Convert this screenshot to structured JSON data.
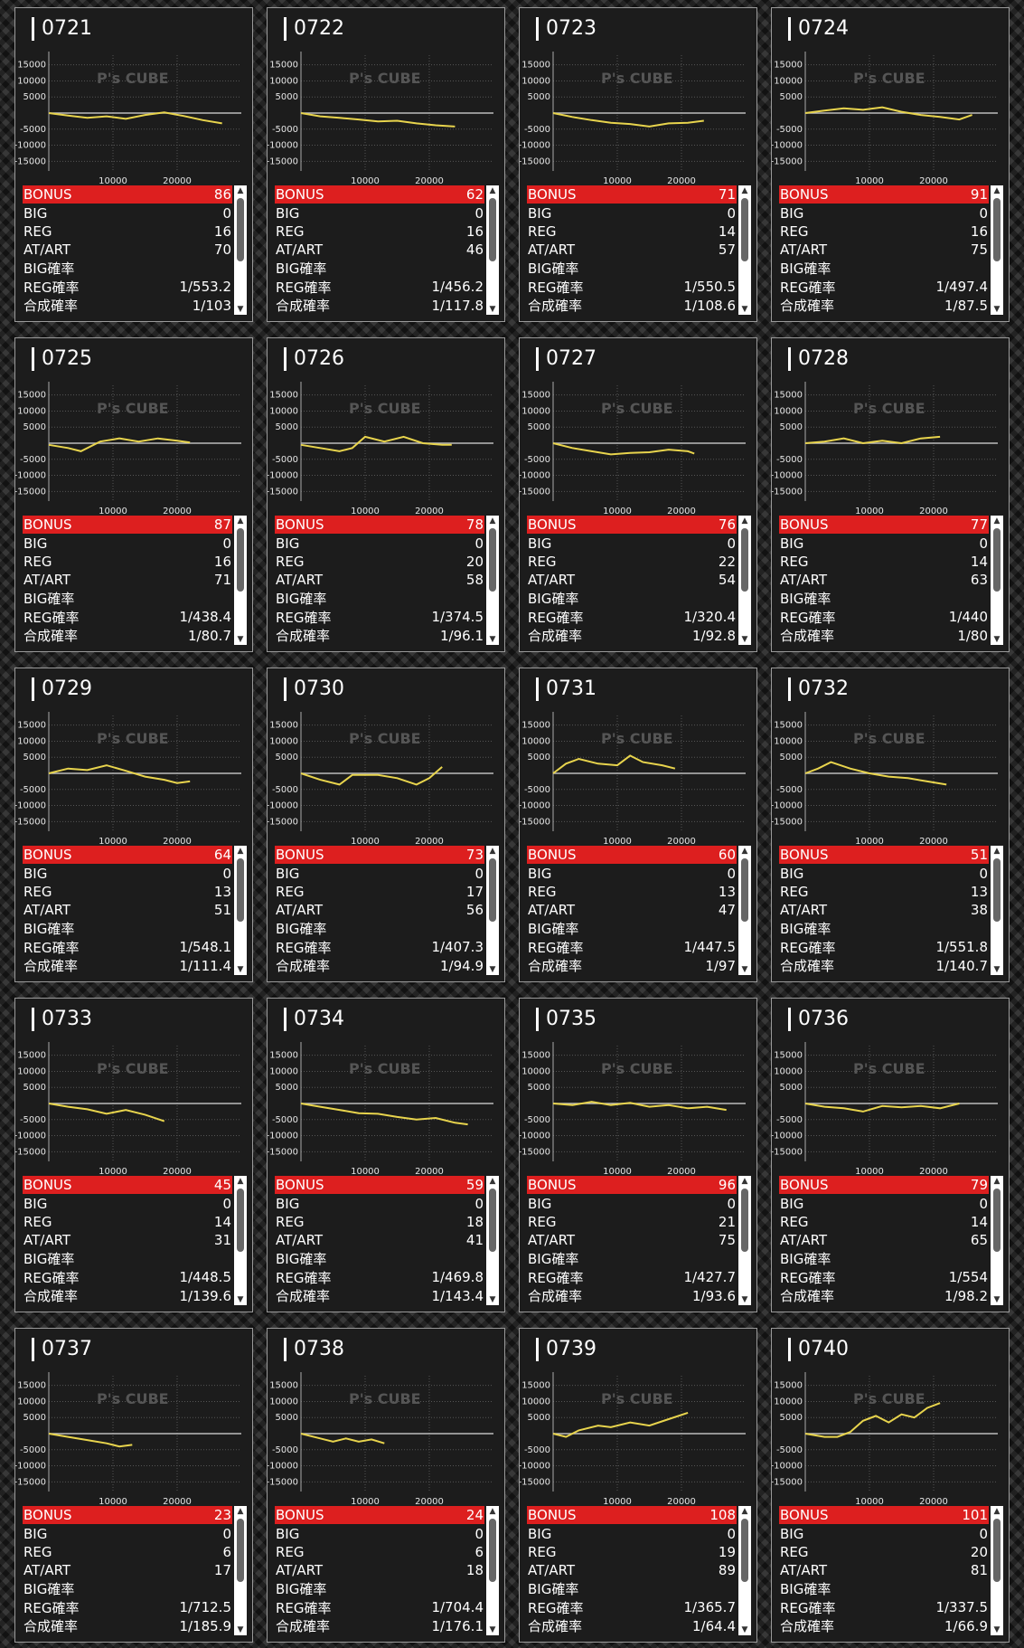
{
  "row_labels": {
    "bonus": "BONUS",
    "big": "BIG",
    "reg": "REG",
    "at": "AT/ART",
    "big_rate": "BIG確率",
    "reg_rate": "REG確率",
    "total_rate": "合成確率"
  },
  "watermark": "P's CUBE",
  "colors": {
    "line": "#e8d44d",
    "bonus_bg": "#dd1f1f",
    "card_bg": "#1c1c1c"
  },
  "chart_data": [
    {
      "type": "line",
      "title": "0721",
      "ylim": [
        -18000,
        18000
      ],
      "xlim": [
        0,
        30000
      ],
      "y_ticks": [
        15000,
        10000,
        5000,
        -5000,
        -10000,
        -15000
      ],
      "x_ticks": [
        10000,
        20000
      ],
      "x": [
        0,
        3000,
        6000,
        9000,
        12000,
        15000,
        18000,
        21000,
        24000,
        27000
      ],
      "y": [
        0,
        -800,
        -1500,
        -1000,
        -1800,
        -600,
        200,
        -900,
        -2200,
        -3200
      ],
      "stats": {
        "bonus": "86",
        "big": "0",
        "reg": "16",
        "at": "70",
        "big_rate": "",
        "reg_rate": "1/553.2",
        "total_rate": "1/103"
      }
    },
    {
      "type": "line",
      "title": "0722",
      "ylim": [
        -18000,
        18000
      ],
      "xlim": [
        0,
        30000
      ],
      "y_ticks": [
        15000,
        10000,
        5000,
        -5000,
        -10000,
        -15000
      ],
      "x_ticks": [
        10000,
        20000
      ],
      "x": [
        0,
        3000,
        6000,
        9000,
        12000,
        15000,
        18000,
        21000,
        24000
      ],
      "y": [
        0,
        -1000,
        -1500,
        -2000,
        -2600,
        -2400,
        -3200,
        -3800,
        -4200
      ],
      "stats": {
        "bonus": "62",
        "big": "0",
        "reg": "16",
        "at": "46",
        "big_rate": "",
        "reg_rate": "1/456.2",
        "total_rate": "1/117.8"
      }
    },
    {
      "type": "line",
      "title": "0723",
      "ylim": [
        -18000,
        18000
      ],
      "xlim": [
        0,
        30000
      ],
      "y_ticks": [
        15000,
        10000,
        5000,
        -5000,
        -10000,
        -15000
      ],
      "x_ticks": [
        10000,
        20000
      ],
      "x": [
        0,
        3000,
        6000,
        9000,
        12000,
        15000,
        18000,
        21000,
        23500
      ],
      "y": [
        0,
        -1200,
        -2200,
        -3000,
        -3400,
        -4200,
        -3200,
        -3000,
        -2400
      ],
      "stats": {
        "bonus": "71",
        "big": "0",
        "reg": "14",
        "at": "57",
        "big_rate": "",
        "reg_rate": "1/550.5",
        "total_rate": "1/108.6"
      }
    },
    {
      "type": "line",
      "title": "0724",
      "ylim": [
        -18000,
        18000
      ],
      "xlim": [
        0,
        30000
      ],
      "y_ticks": [
        15000,
        10000,
        5000,
        -5000,
        -10000,
        -15000
      ],
      "x_ticks": [
        10000,
        20000
      ],
      "x": [
        0,
        3000,
        6000,
        9000,
        12000,
        15000,
        18000,
        21000,
        24000,
        26000
      ],
      "y": [
        0,
        800,
        1500,
        1000,
        1800,
        400,
        -600,
        -1200,
        -2000,
        -600
      ],
      "stats": {
        "bonus": "91",
        "big": "0",
        "reg": "16",
        "at": "75",
        "big_rate": "",
        "reg_rate": "1/497.4",
        "total_rate": "1/87.5"
      }
    },
    {
      "type": "line",
      "title": "0725",
      "ylim": [
        -18000,
        18000
      ],
      "xlim": [
        0,
        30000
      ],
      "y_ticks": [
        15000,
        10000,
        5000,
        -5000,
        -10000,
        -15000
      ],
      "x_ticks": [
        10000,
        20000
      ],
      "x": [
        0,
        3000,
        5000,
        8000,
        11000,
        14000,
        17000,
        20000,
        22000
      ],
      "y": [
        -500,
        -1500,
        -2500,
        500,
        1500,
        500,
        1500,
        800,
        200
      ],
      "stats": {
        "bonus": "87",
        "big": "0",
        "reg": "16",
        "at": "71",
        "big_rate": "",
        "reg_rate": "1/438.4",
        "total_rate": "1/80.7"
      }
    },
    {
      "type": "line",
      "title": "0726",
      "ylim": [
        -18000,
        18000
      ],
      "xlim": [
        0,
        30000
      ],
      "y_ticks": [
        15000,
        10000,
        5000,
        -5000,
        -10000,
        -15000
      ],
      "x_ticks": [
        10000,
        20000
      ],
      "x": [
        0,
        3000,
        6000,
        8000,
        10000,
        13000,
        16000,
        19000,
        22000,
        23500
      ],
      "y": [
        -500,
        -1500,
        -2500,
        -1500,
        2000,
        500,
        2000,
        0,
        -500,
        -500
      ],
      "stats": {
        "bonus": "78",
        "big": "0",
        "reg": "20",
        "at": "58",
        "big_rate": "",
        "reg_rate": "1/374.5",
        "total_rate": "1/96.1"
      }
    },
    {
      "type": "line",
      "title": "0727",
      "ylim": [
        -18000,
        18000
      ],
      "xlim": [
        0,
        30000
      ],
      "y_ticks": [
        15000,
        10000,
        5000,
        -5000,
        -10000,
        -15000
      ],
      "x_ticks": [
        10000,
        20000
      ],
      "x": [
        0,
        3000,
        6000,
        9000,
        12000,
        15000,
        18000,
        21000,
        22000
      ],
      "y": [
        0,
        -1500,
        -2500,
        -3500,
        -3000,
        -2800,
        -2000,
        -2500,
        -3200
      ],
      "stats": {
        "bonus": "76",
        "big": "0",
        "reg": "22",
        "at": "54",
        "big_rate": "",
        "reg_rate": "1/320.4",
        "total_rate": "1/92.8"
      }
    },
    {
      "type": "line",
      "title": "0728",
      "ylim": [
        -18000,
        18000
      ],
      "xlim": [
        0,
        30000
      ],
      "y_ticks": [
        15000,
        10000,
        5000,
        -5000,
        -10000,
        -15000
      ],
      "x_ticks": [
        10000,
        20000
      ],
      "x": [
        0,
        3000,
        6000,
        9000,
        12000,
        15000,
        18000,
        21000
      ],
      "y": [
        0,
        500,
        1500,
        0,
        800,
        0,
        1500,
        2000
      ],
      "stats": {
        "bonus": "77",
        "big": "0",
        "reg": "14",
        "at": "63",
        "big_rate": "",
        "reg_rate": "1/440",
        "total_rate": "1/80"
      }
    },
    {
      "type": "line",
      "title": "0729",
      "ylim": [
        -18000,
        18000
      ],
      "xlim": [
        0,
        30000
      ],
      "y_ticks": [
        15000,
        10000,
        5000,
        -5000,
        -10000,
        -15000
      ],
      "x_ticks": [
        10000,
        20000
      ],
      "x": [
        0,
        3000,
        6000,
        9000,
        12000,
        15000,
        18000,
        20000,
        22000
      ],
      "y": [
        0,
        1500,
        1000,
        2500,
        800,
        -1000,
        -2000,
        -3000,
        -2500
      ],
      "stats": {
        "bonus": "64",
        "big": "0",
        "reg": "13",
        "at": "51",
        "big_rate": "",
        "reg_rate": "1/548.1",
        "total_rate": "1/111.4"
      }
    },
    {
      "type": "line",
      "title": "0730",
      "ylim": [
        -18000,
        18000
      ],
      "xlim": [
        0,
        30000
      ],
      "y_ticks": [
        15000,
        10000,
        5000,
        -5000,
        -10000,
        -15000
      ],
      "x_ticks": [
        10000,
        20000
      ],
      "x": [
        0,
        3000,
        6000,
        8000,
        12000,
        15000,
        18000,
        20000,
        22000
      ],
      "y": [
        0,
        -2000,
        -3500,
        -500,
        -500,
        -1500,
        -3500,
        -1500,
        2000
      ],
      "stats": {
        "bonus": "73",
        "big": "0",
        "reg": "17",
        "at": "56",
        "big_rate": "",
        "reg_rate": "1/407.3",
        "total_rate": "1/94.9"
      }
    },
    {
      "type": "line",
      "title": "0731",
      "ylim": [
        -18000,
        18000
      ],
      "xlim": [
        0,
        30000
      ],
      "y_ticks": [
        15000,
        10000,
        5000,
        -5000,
        -10000,
        -15000
      ],
      "x_ticks": [
        10000,
        20000
      ],
      "x": [
        0,
        2000,
        4000,
        7000,
        10000,
        12000,
        14000,
        17000,
        19000
      ],
      "y": [
        0,
        3000,
        4500,
        3000,
        2500,
        5500,
        3500,
        2500,
        1500
      ],
      "stats": {
        "bonus": "60",
        "big": "0",
        "reg": "13",
        "at": "47",
        "big_rate": "",
        "reg_rate": "1/447.5",
        "total_rate": "1/97"
      }
    },
    {
      "type": "line",
      "title": "0732",
      "ylim": [
        -18000,
        18000
      ],
      "xlim": [
        0,
        30000
      ],
      "y_ticks": [
        15000,
        10000,
        5000,
        -5000,
        -10000,
        -15000
      ],
      "x_ticks": [
        10000,
        20000
      ],
      "x": [
        0,
        2000,
        4000,
        7000,
        10000,
        13000,
        16000,
        19000,
        22000
      ],
      "y": [
        0,
        1500,
        3500,
        1500,
        0,
        -1000,
        -1500,
        -2500,
        -3500
      ],
      "stats": {
        "bonus": "51",
        "big": "0",
        "reg": "13",
        "at": "38",
        "big_rate": "",
        "reg_rate": "1/551.8",
        "total_rate": "1/140.7"
      }
    },
    {
      "type": "line",
      "title": "0733",
      "ylim": [
        -18000,
        18000
      ],
      "xlim": [
        0,
        30000
      ],
      "y_ticks": [
        15000,
        10000,
        5000,
        -5000,
        -10000,
        -15000
      ],
      "x_ticks": [
        10000,
        20000
      ],
      "x": [
        0,
        3000,
        6000,
        9000,
        12000,
        15000,
        18000
      ],
      "y": [
        0,
        -1000,
        -1800,
        -3200,
        -2000,
        -3500,
        -5500
      ],
      "stats": {
        "bonus": "45",
        "big": "0",
        "reg": "14",
        "at": "31",
        "big_rate": "",
        "reg_rate": "1/448.5",
        "total_rate": "1/139.6"
      }
    },
    {
      "type": "line",
      "title": "0734",
      "ylim": [
        -18000,
        18000
      ],
      "xlim": [
        0,
        30000
      ],
      "y_ticks": [
        15000,
        10000,
        5000,
        -5000,
        -10000,
        -15000
      ],
      "x_ticks": [
        10000,
        20000
      ],
      "x": [
        0,
        3000,
        6000,
        9000,
        12000,
        15000,
        18000,
        21000,
        24000,
        26000
      ],
      "y": [
        0,
        -1000,
        -2000,
        -3000,
        -3200,
        -4200,
        -5000,
        -4500,
        -6000,
        -6500
      ],
      "stats": {
        "bonus": "59",
        "big": "0",
        "reg": "18",
        "at": "41",
        "big_rate": "",
        "reg_rate": "1/469.8",
        "total_rate": "1/143.4"
      }
    },
    {
      "type": "line",
      "title": "0735",
      "ylim": [
        -18000,
        18000
      ],
      "xlim": [
        0,
        30000
      ],
      "y_ticks": [
        15000,
        10000,
        5000,
        -5000,
        -10000,
        -15000
      ],
      "x_ticks": [
        10000,
        20000
      ],
      "x": [
        0,
        3000,
        6000,
        9000,
        12000,
        15000,
        18000,
        21000,
        24000,
        27000
      ],
      "y": [
        0,
        -500,
        500,
        -500,
        200,
        -1000,
        -500,
        -1500,
        -1000,
        -2000
      ],
      "stats": {
        "bonus": "96",
        "big": "0",
        "reg": "21",
        "at": "75",
        "big_rate": "",
        "reg_rate": "1/427.7",
        "total_rate": "1/93.6"
      }
    },
    {
      "type": "line",
      "title": "0736",
      "ylim": [
        -18000,
        18000
      ],
      "xlim": [
        0,
        30000
      ],
      "y_ticks": [
        15000,
        10000,
        5000,
        -5000,
        -10000,
        -15000
      ],
      "x_ticks": [
        10000,
        20000
      ],
      "x": [
        0,
        3000,
        6000,
        9000,
        12000,
        15000,
        18000,
        21000,
        24000
      ],
      "y": [
        0,
        -1000,
        -1500,
        -2500,
        -800,
        -1200,
        -800,
        -1500,
        0
      ],
      "stats": {
        "bonus": "79",
        "big": "0",
        "reg": "14",
        "at": "65",
        "big_rate": "",
        "reg_rate": "1/554",
        "total_rate": "1/98.2"
      }
    },
    {
      "type": "line",
      "title": "0737",
      "ylim": [
        -18000,
        18000
      ],
      "xlim": [
        0,
        30000
      ],
      "y_ticks": [
        15000,
        10000,
        5000,
        -5000,
        -10000,
        -15000
      ],
      "x_ticks": [
        10000,
        20000
      ],
      "x": [
        0,
        3000,
        6000,
        9000,
        11000,
        13000
      ],
      "y": [
        0,
        -1000,
        -2000,
        -3000,
        -4000,
        -3500
      ],
      "stats": {
        "bonus": "23",
        "big": "0",
        "reg": "6",
        "at": "17",
        "big_rate": "",
        "reg_rate": "1/712.5",
        "total_rate": "1/185.9"
      }
    },
    {
      "type": "line",
      "title": "0738",
      "ylim": [
        -18000,
        18000
      ],
      "xlim": [
        0,
        30000
      ],
      "y_ticks": [
        15000,
        10000,
        5000,
        -5000,
        -10000,
        -15000
      ],
      "x_ticks": [
        10000,
        20000
      ],
      "x": [
        0,
        3000,
        5000,
        7000,
        9000,
        11000,
        13000
      ],
      "y": [
        0,
        -1500,
        -2500,
        -1500,
        -2500,
        -1800,
        -3000
      ],
      "stats": {
        "bonus": "24",
        "big": "0",
        "reg": "6",
        "at": "18",
        "big_rate": "",
        "reg_rate": "1/704.4",
        "total_rate": "1/176.1"
      }
    },
    {
      "type": "line",
      "title": "0739",
      "ylim": [
        -18000,
        18000
      ],
      "xlim": [
        0,
        30000
      ],
      "y_ticks": [
        15000,
        10000,
        5000,
        -5000,
        -10000,
        -15000
      ],
      "x_ticks": [
        10000,
        20000
      ],
      "x": [
        0,
        2000,
        4000,
        7000,
        9000,
        12000,
        15000,
        18000,
        21000
      ],
      "y": [
        0,
        -1000,
        1000,
        2500,
        2000,
        3500,
        2500,
        4500,
        6500
      ],
      "stats": {
        "bonus": "108",
        "big": "0",
        "reg": "19",
        "at": "89",
        "big_rate": "",
        "reg_rate": "1/365.7",
        "total_rate": "1/64.4"
      }
    },
    {
      "type": "line",
      "title": "0740",
      "ylim": [
        -18000,
        18000
      ],
      "xlim": [
        0,
        30000
      ],
      "y_ticks": [
        15000,
        10000,
        5000,
        -5000,
        -10000,
        -15000
      ],
      "x_ticks": [
        10000,
        20000
      ],
      "x": [
        0,
        3000,
        5000,
        7000,
        9000,
        11000,
        13000,
        15000,
        17000,
        19000,
        21000
      ],
      "y": [
        0,
        -1000,
        -1000,
        500,
        4000,
        5500,
        3500,
        6000,
        5000,
        8000,
        9500
      ],
      "stats": {
        "bonus": "101",
        "big": "0",
        "reg": "20",
        "at": "81",
        "big_rate": "",
        "reg_rate": "1/337.5",
        "total_rate": "1/66.9"
      }
    }
  ]
}
